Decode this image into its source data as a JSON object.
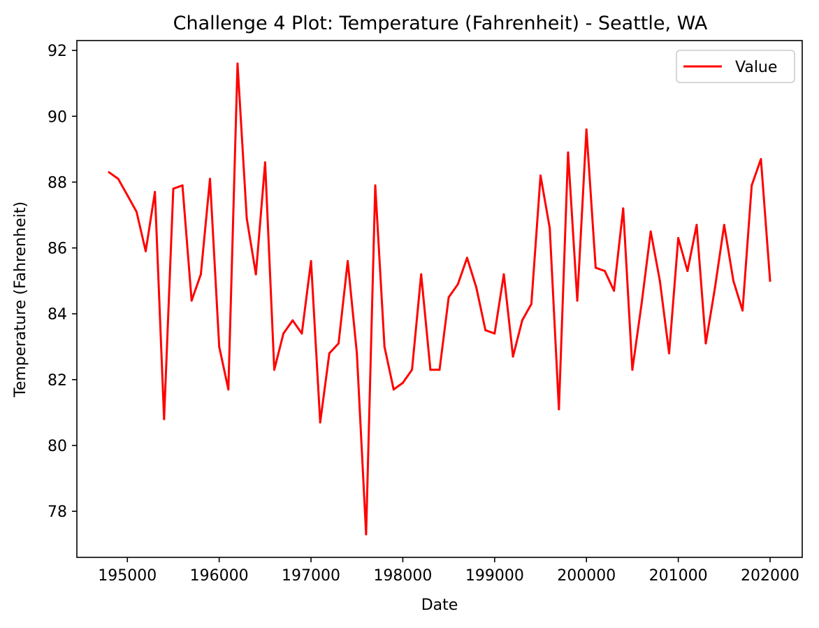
{
  "chart_data": {
    "type": "line",
    "title": "Challenge 4 Plot: Temperature (Fahrenheit) - Seattle, WA",
    "xlabel": "Date",
    "ylabel": "Temperature (Fahrenheit)",
    "xlim": [
      194450,
      202350
    ],
    "ylim": [
      76.6,
      92.3
    ],
    "x_ticks": [
      195000,
      196000,
      197000,
      198000,
      199000,
      200000,
      201000,
      202000
    ],
    "y_ticks": [
      78,
      80,
      82,
      84,
      86,
      88,
      90,
      92
    ],
    "legend_position": "top-right",
    "grid": false,
    "series": [
      {
        "name": "Value",
        "color": "#ff0000",
        "x": [
          194800,
          194900,
          195000,
          195100,
          195200,
          195300,
          195400,
          195500,
          195600,
          195700,
          195800,
          195900,
          196000,
          196100,
          196200,
          196300,
          196400,
          196500,
          196600,
          196700,
          196800,
          196900,
          197000,
          197100,
          197200,
          197300,
          197400,
          197500,
          197600,
          197700,
          197800,
          197900,
          198000,
          198100,
          198200,
          198300,
          198400,
          198500,
          198600,
          198700,
          198800,
          198900,
          199000,
          199100,
          199200,
          199300,
          199400,
          199500,
          199600,
          199700,
          199800,
          199900,
          200000,
          200100,
          200200,
          200300,
          200400,
          200500,
          200600,
          200700,
          200800,
          200900,
          201000,
          201100,
          201200,
          201300,
          201400,
          201500,
          201600,
          201700,
          201800,
          201900,
          202000
        ],
        "values": [
          88.3,
          88.1,
          87.6,
          87.1,
          85.9,
          87.7,
          80.8,
          87.8,
          87.9,
          84.4,
          85.2,
          88.1,
          83.0,
          81.7,
          91.6,
          86.9,
          85.2,
          88.6,
          82.3,
          83.4,
          83.8,
          83.4,
          85.6,
          80.7,
          82.8,
          83.1,
          85.6,
          82.8,
          77.3,
          87.9,
          83.0,
          81.7,
          81.9,
          82.3,
          85.2,
          82.3,
          82.3,
          84.5,
          84.9,
          85.7,
          84.8,
          83.5,
          83.4,
          85.2,
          82.7,
          83.8,
          84.3,
          88.2,
          86.6,
          81.1,
          88.9,
          84.4,
          89.6,
          85.4,
          85.3,
          84.7,
          87.2,
          82.3,
          84.3,
          86.5,
          85.0,
          82.8,
          86.3,
          85.3,
          86.7,
          83.1,
          84.8,
          86.7,
          85.0,
          84.1,
          87.9,
          88.7,
          85.0
        ]
      }
    ]
  }
}
